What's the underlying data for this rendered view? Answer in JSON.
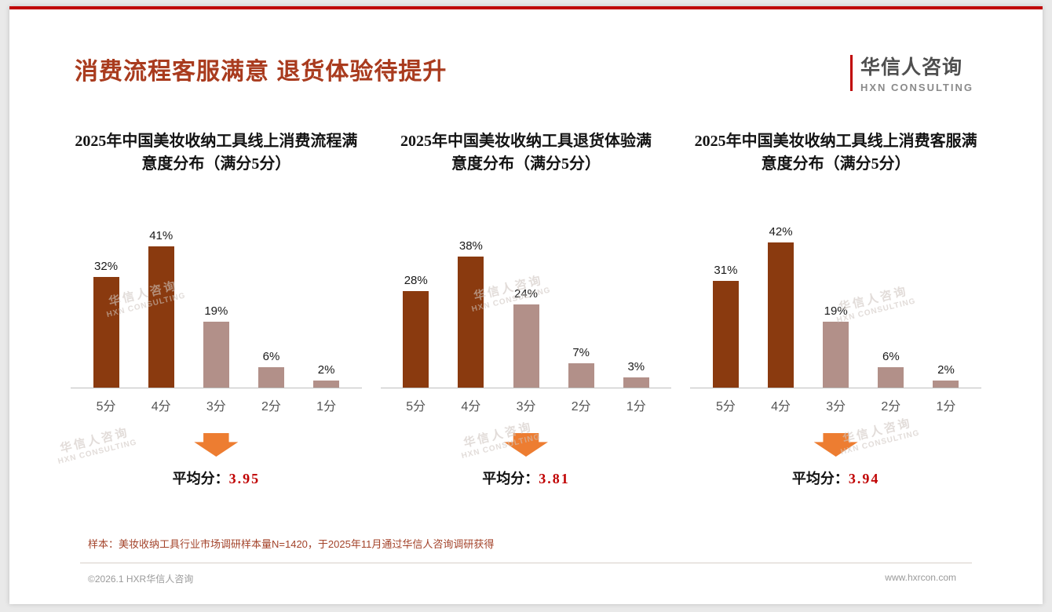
{
  "colors": {
    "top_line": "#c00000",
    "title": "#a93b1e",
    "arrow": "#ed7d31",
    "score": "#c00000",
    "watermark": "#cfc6c0"
  },
  "header": {
    "title": "消费流程客服满意 退货体验待提升",
    "logo": {
      "name": "华信人咨询",
      "subtitle": "HXN CONSULTING"
    }
  },
  "watermark": {
    "line1": "华信人咨询",
    "line2": "HXN CONSULTING"
  },
  "chart_data": [
    {
      "type": "bar",
      "title": "2025年中国美妆收纳工具线上消费流程满意度分布（满分5分）",
      "categories": [
        "5分",
        "4分",
        "3分",
        "2分",
        "1分"
      ],
      "values": [
        32,
        41,
        19,
        6,
        2
      ],
      "value_labels": [
        "32%",
        "41%",
        "19%",
        "6%",
        "2%"
      ],
      "bar_colors": [
        "#8a3a0f",
        "#8a3a0f",
        "#b29089",
        "#b29089",
        "#b29089"
      ],
      "ylim": [
        0,
        45
      ],
      "grid": false,
      "average_label": "平均分：",
      "average_value": "3.95"
    },
    {
      "type": "bar",
      "title": "2025年中国美妆收纳工具退货体验满意度分布（满分5分）",
      "categories": [
        "5分",
        "4分",
        "3分",
        "2分",
        "1分"
      ],
      "values": [
        28,
        38,
        24,
        7,
        3
      ],
      "value_labels": [
        "28%",
        "38%",
        "24%",
        "7%",
        "3%"
      ],
      "bar_colors": [
        "#8a3a0f",
        "#8a3a0f",
        "#b29089",
        "#b29089",
        "#b29089"
      ],
      "ylim": [
        0,
        45
      ],
      "grid": false,
      "average_label": "平均分：",
      "average_value": "3.81"
    },
    {
      "type": "bar",
      "title": "2025年中国美妆收纳工具线上消费客服满意度分布（满分5分）",
      "categories": [
        "5分",
        "4分",
        "3分",
        "2分",
        "1分"
      ],
      "values": [
        31,
        42,
        19,
        6,
        2
      ],
      "value_labels": [
        "31%",
        "42%",
        "19%",
        "6%",
        "2%"
      ],
      "bar_colors": [
        "#8a3a0f",
        "#8a3a0f",
        "#b29089",
        "#b29089",
        "#b29089"
      ],
      "ylim": [
        0,
        45
      ],
      "grid": false,
      "average_label": "平均分：",
      "average_value": "3.94"
    }
  ],
  "footnote": "样本：美妆收纳工具行业市场调研样本量N=1420，于2025年11月通过华信人咨询调研获得",
  "footer": {
    "left": "©2026.1 HXR华信人咨询",
    "right": "www.hxrcon.com"
  }
}
